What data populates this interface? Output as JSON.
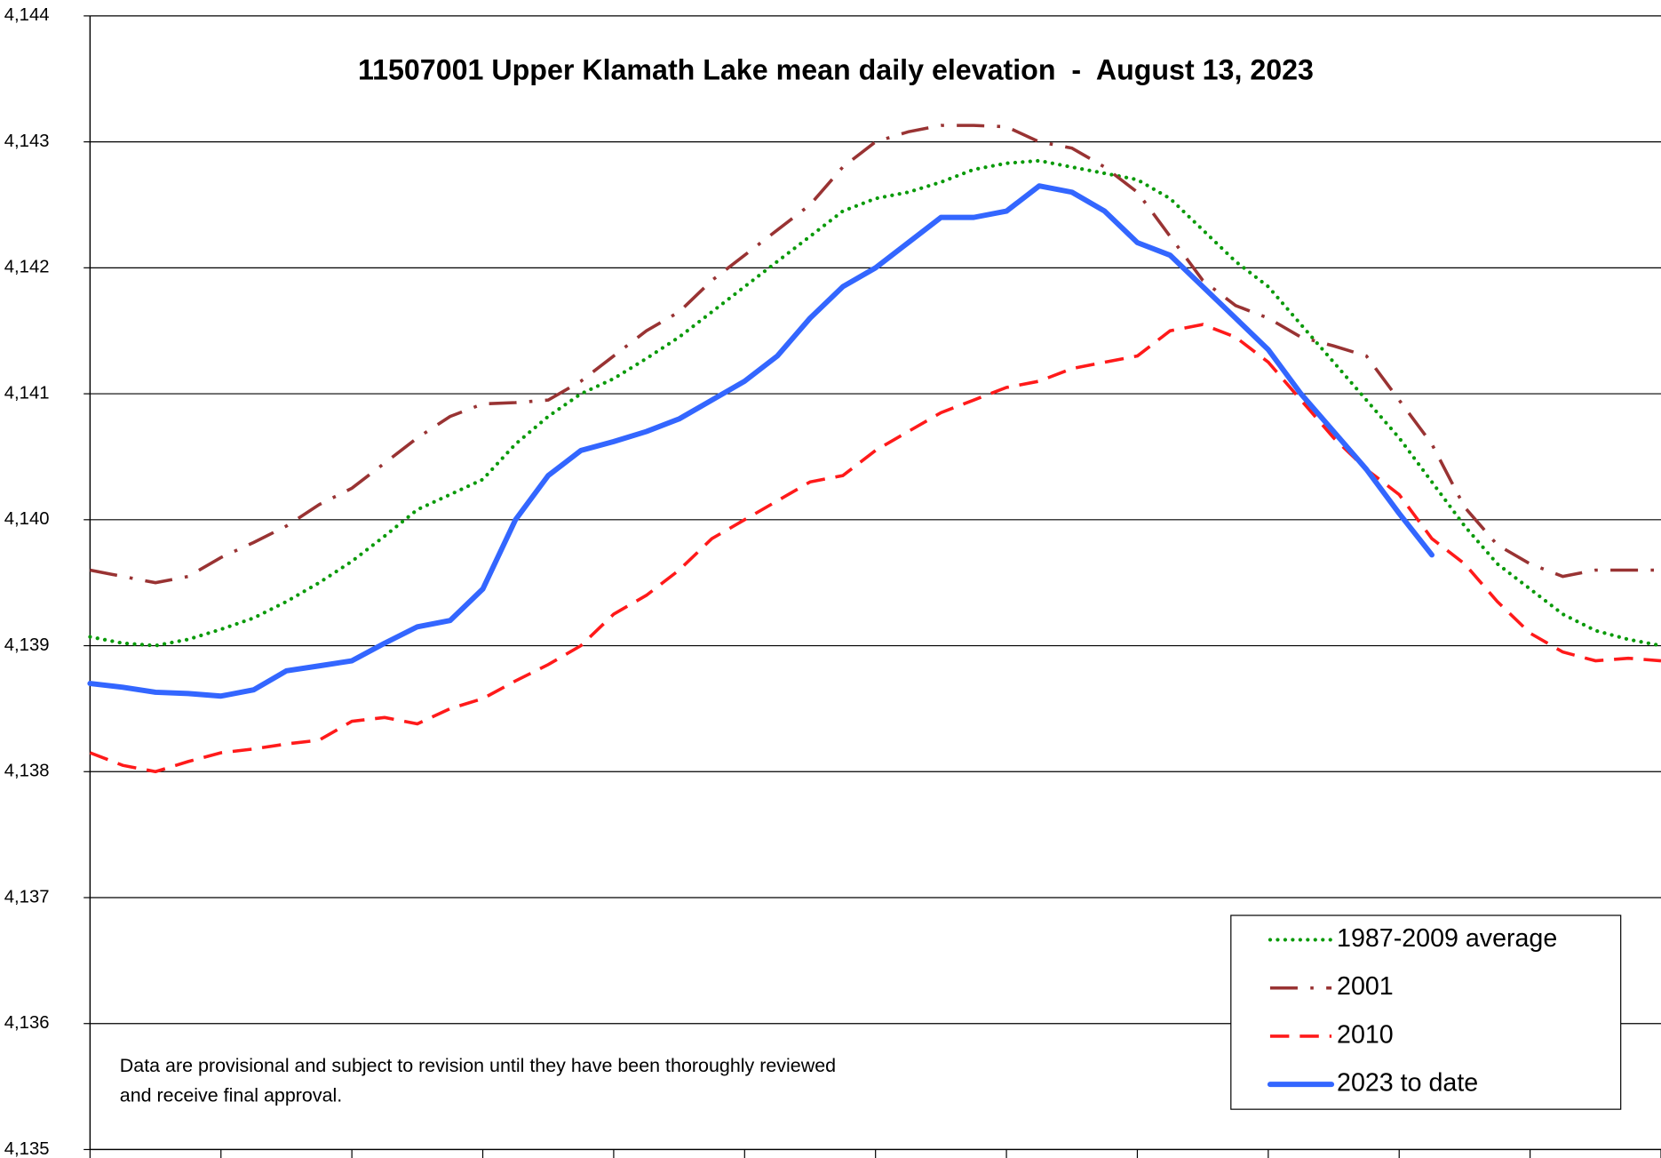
{
  "chart_data": {
    "type": "line",
    "title": "11507001 Upper Klamath Lake mean daily elevation  -  August 13, 2023",
    "note": [
      "Data are provisional and subject to revision until they have been thoroughly reviewed",
      "and receive final approval."
    ],
    "ylim": [
      4135,
      4144
    ],
    "yticks": [
      {
        "value": 4135,
        "label": "4,135"
      },
      {
        "value": 4136,
        "label": "4,136"
      },
      {
        "value": 4137,
        "label": "4,137"
      },
      {
        "value": 4138,
        "label": "4,138"
      },
      {
        "value": 4139,
        "label": "4,139"
      },
      {
        "value": 4140,
        "label": "4,140"
      },
      {
        "value": 4141,
        "label": "4,141"
      },
      {
        "value": 4142,
        "label": "4,142"
      },
      {
        "value": 4143,
        "label": "4,143"
      },
      {
        "value": 4144,
        "label": "4,144"
      }
    ],
    "grid": true,
    "legend": "lower right",
    "series": [
      {
        "name": "1987-2009 average",
        "color": "#0a9a0a",
        "style": "dotted",
        "values": [
          4139.07,
          4139.02,
          4139.0,
          4139.05,
          4139.13,
          4139.22,
          4139.35,
          4139.5,
          4139.67,
          4139.87,
          4140.08,
          4140.2,
          4140.32,
          4140.6,
          4140.82,
          4141.0,
          4141.12,
          4141.28,
          4141.45,
          4141.65,
          4141.85,
          4142.05,
          4142.25,
          4142.45,
          4142.55,
          4142.6,
          4142.68,
          4142.78,
          4142.83,
          4142.85,
          4142.8,
          4142.75,
          4142.7,
          4142.55,
          4142.3,
          4142.05,
          4141.85,
          4141.55,
          4141.25,
          4140.95,
          4140.65,
          4140.3,
          4139.95,
          4139.65,
          4139.45,
          4139.25,
          4139.12,
          4139.05,
          4139.0
        ]
      },
      {
        "name": "2001",
        "color": "#993333",
        "style": "dashdot",
        "values": [
          4139.6,
          4139.55,
          4139.5,
          4139.55,
          4139.7,
          4139.82,
          4139.95,
          4140.12,
          4140.25,
          4140.45,
          4140.65,
          4140.82,
          4140.92,
          4140.93,
          4140.95,
          4141.1,
          4141.3,
          4141.5,
          4141.65,
          4141.9,
          4142.1,
          4142.3,
          4142.5,
          4142.8,
          4143.0,
          4143.08,
          4143.13,
          4143.13,
          4143.12,
          4143.0,
          4142.95,
          4142.8,
          4142.6,
          4142.25,
          4141.9,
          4141.7,
          4141.6,
          4141.45,
          4141.38,
          4141.3,
          4140.95,
          4140.6,
          4140.1,
          4139.8,
          4139.65,
          4139.55,
          4139.6,
          4139.6,
          4139.6
        ]
      },
      {
        "name": "2010",
        "color": "#ff1a1a",
        "style": "dashed",
        "values": [
          4138.15,
          4138.05,
          4138.0,
          4138.08,
          4138.15,
          4138.18,
          4138.22,
          4138.25,
          4138.4,
          4138.43,
          4138.38,
          4138.5,
          4138.58,
          4138.72,
          4138.85,
          4139.0,
          4139.25,
          4139.4,
          4139.6,
          4139.85,
          4140.0,
          4140.15,
          4140.3,
          4140.35,
          4140.55,
          4140.7,
          4140.85,
          4140.95,
          4141.05,
          4141.1,
          4141.2,
          4141.25,
          4141.3,
          4141.5,
          4141.55,
          4141.45,
          4141.25,
          4140.95,
          4140.65,
          4140.4,
          4140.2,
          4139.85,
          4139.65,
          4139.35,
          4139.1,
          4138.95,
          4138.88,
          4138.9,
          4138.88
        ]
      },
      {
        "name": "2023 to date",
        "color": "#3366ff",
        "style": "solid",
        "values": [
          4138.7,
          4138.67,
          4138.63,
          4138.62,
          4138.6,
          4138.65,
          4138.8,
          4138.84,
          4138.88,
          4139.02,
          4139.15,
          4139.2,
          4139.45,
          4140.0,
          4140.35,
          4140.55,
          4140.62,
          4140.7,
          4140.8,
          4140.95,
          4141.1,
          4141.3,
          4141.6,
          4141.85,
          4142.0,
          4142.2,
          4142.4,
          4142.4,
          4142.45,
          4142.65,
          4142.6,
          4142.45,
          4142.2,
          4142.1,
          4141.85,
          4141.6,
          4141.35,
          4141.0,
          4140.7,
          4140.4,
          4140.05,
          4139.72,
          null,
          null,
          null,
          null,
          null,
          null,
          null
        ]
      }
    ]
  }
}
